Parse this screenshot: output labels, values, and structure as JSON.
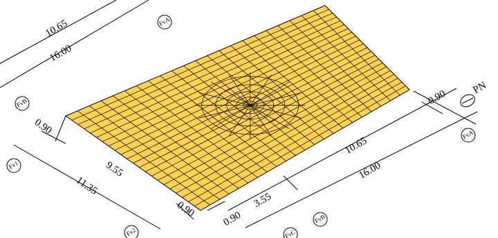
{
  "dimensions": [
    "10.65",
    "16.00",
    "0.90",
    "9.55",
    "11.35",
    "0.90",
    "0.90",
    "3.55",
    "10.65",
    "16.00",
    "0.90"
  ],
  "axes": [
    "FvA",
    "FvB",
    "Fv1",
    "Fv2",
    "FvB",
    "FvC",
    "FvA"
  ],
  "north": "PN"
}
